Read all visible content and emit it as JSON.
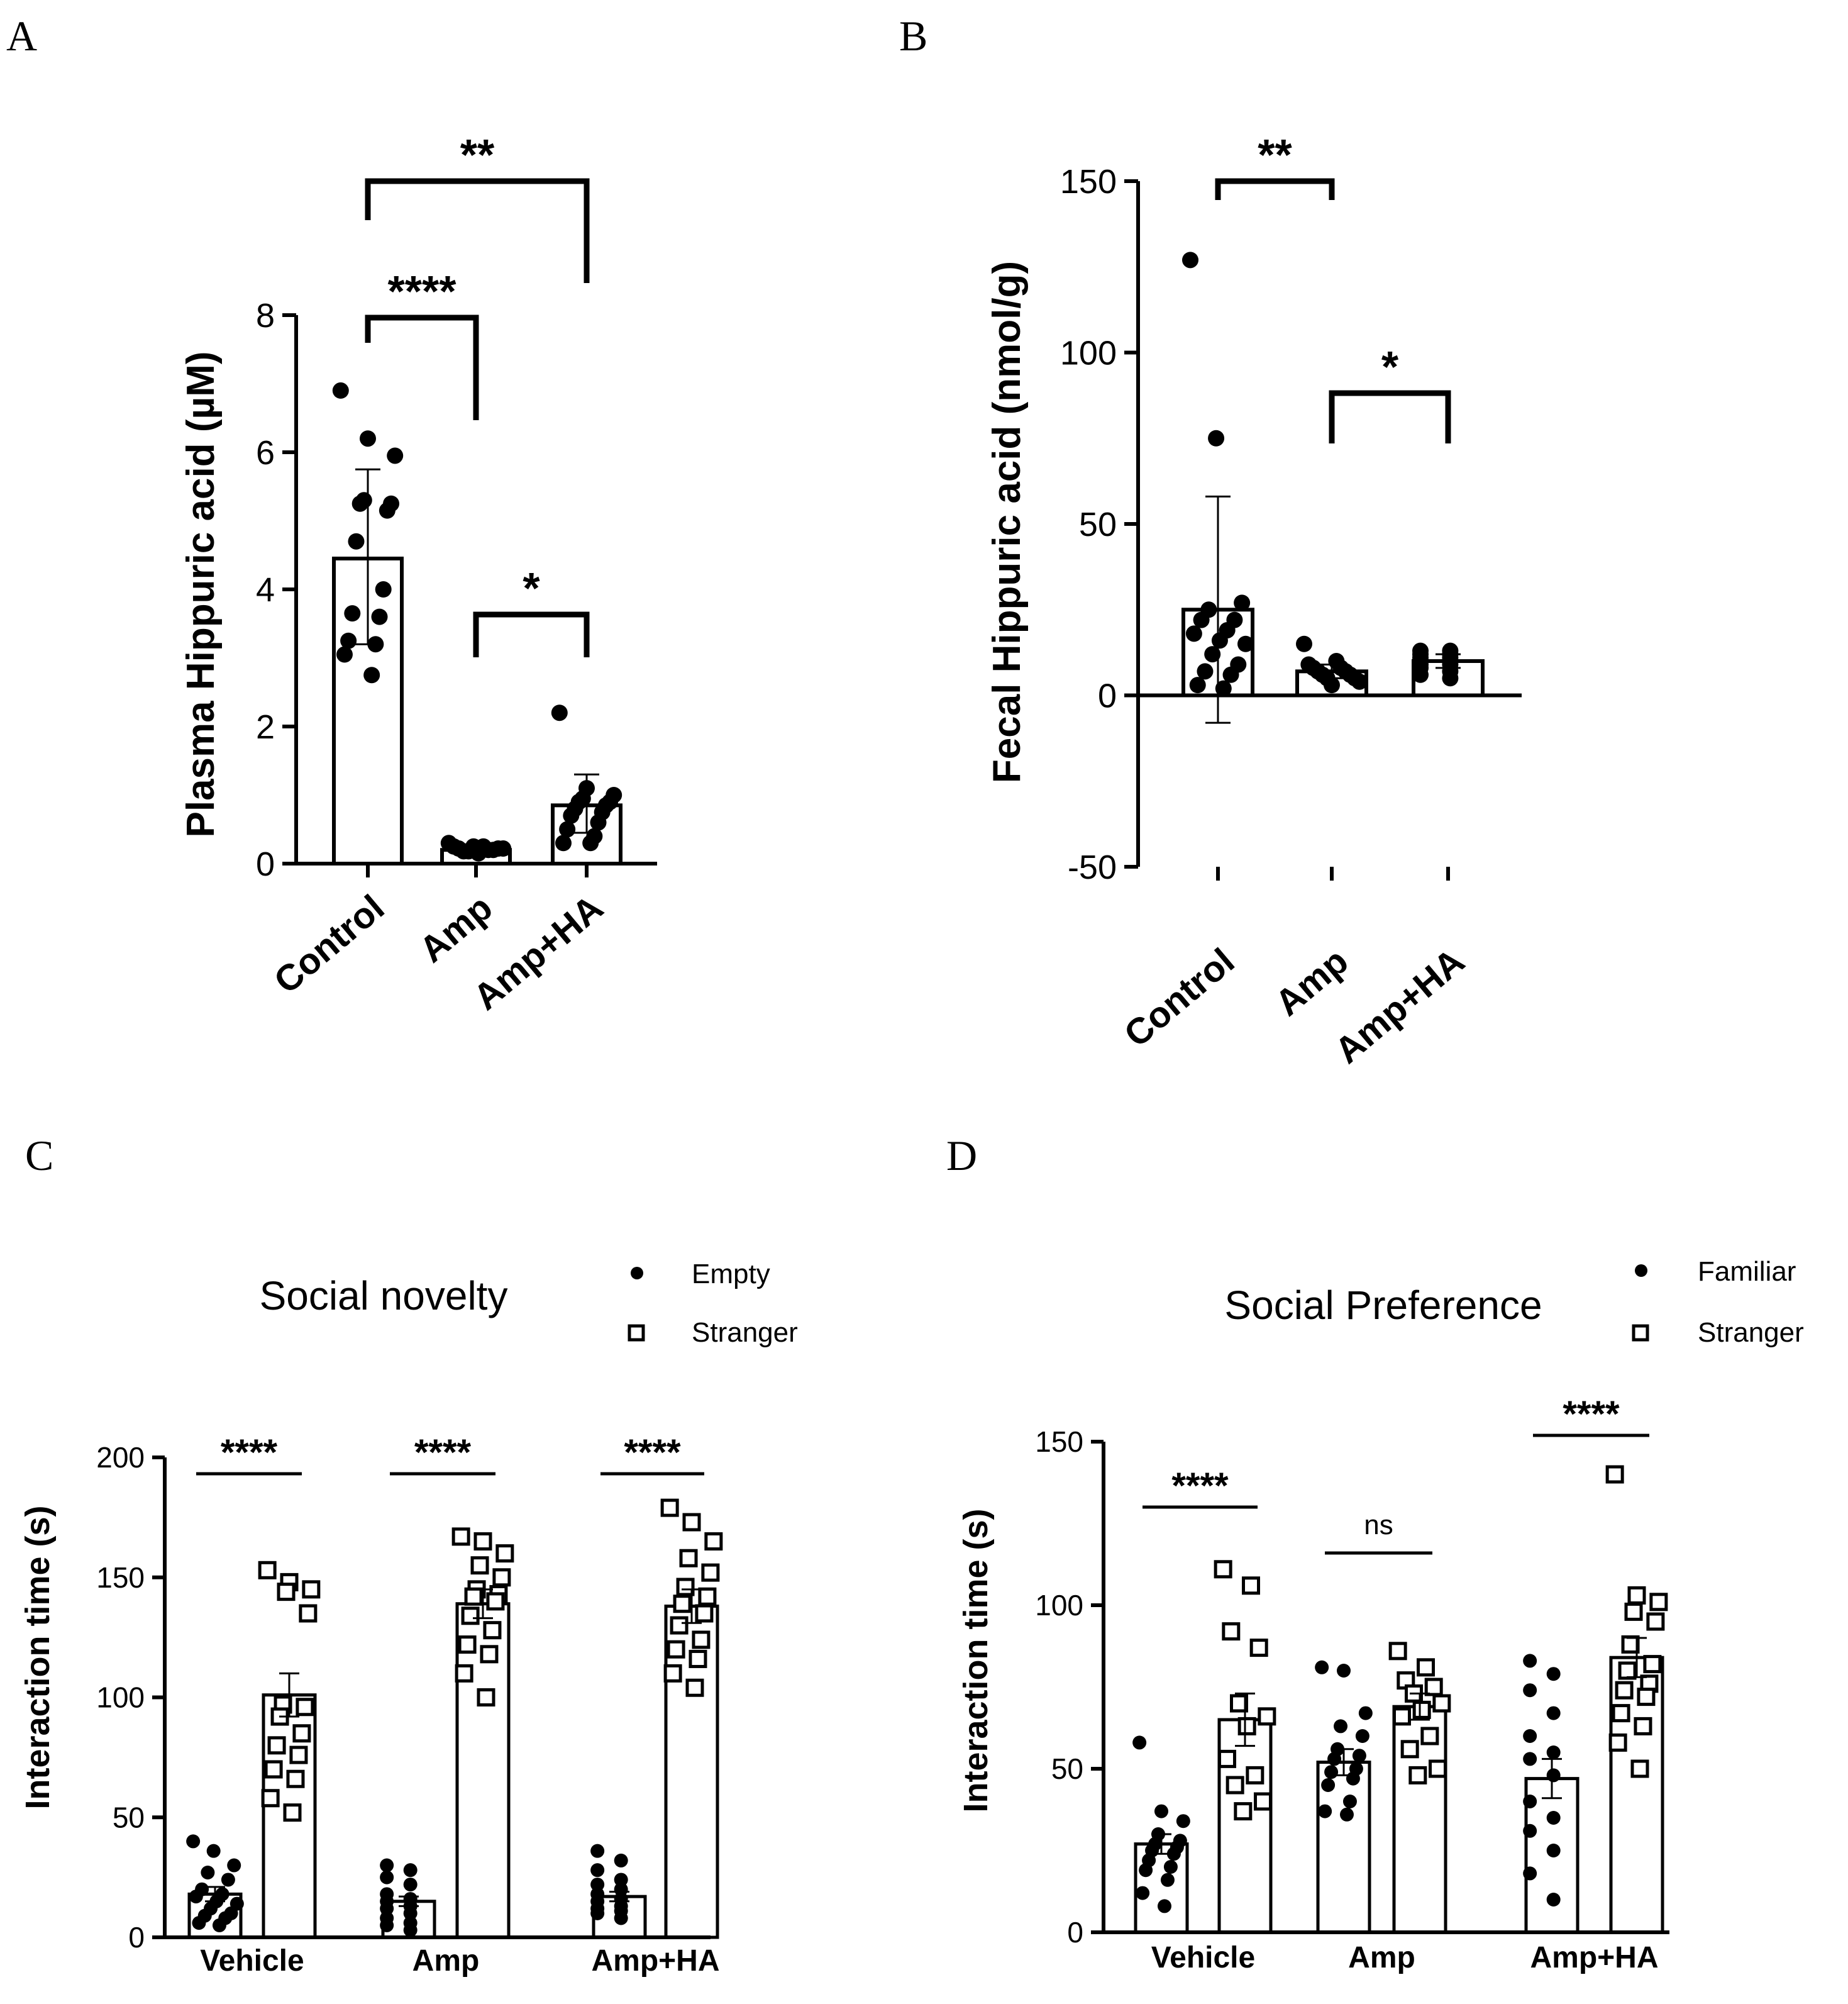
{
  "chart_data": [
    {
      "id": "A",
      "panel_label": "A",
      "type": "bar",
      "title": "",
      "xlabel": "",
      "ylabel": "Plasma Hippuric acid (µM)",
      "ylim": [
        0,
        8
      ],
      "yticks": [
        0,
        2,
        4,
        6,
        8
      ],
      "categories": [
        "Control",
        "Amp",
        "Amp+HA"
      ],
      "bars": [
        {
          "category": "Control",
          "mean": 4.45,
          "err_low": 3.2,
          "err_high": 5.75,
          "points": [
            6.9,
            6.2,
            5.95,
            5.3,
            5.25,
            5.25,
            5.15,
            4.7,
            4.0,
            3.65,
            3.6,
            3.25,
            3.2,
            3.05,
            2.75
          ]
        },
        {
          "category": "Amp",
          "mean": 0.2,
          "err_low": 0.15,
          "err_high": 0.28,
          "points": [
            0.3,
            0.25,
            0.22,
            0.2,
            0.18,
            0.22,
            0.15,
            0.25,
            0.2,
            0.18,
            0.22,
            0.25
          ]
        },
        {
          "category": "Amp+HA",
          "mean": 0.85,
          "err_low": 0.45,
          "err_high": 1.3,
          "points": [
            2.2,
            1.1,
            1.0,
            0.95,
            0.9,
            0.9,
            0.85,
            0.8,
            0.75,
            0.7,
            0.6,
            0.5,
            0.4,
            0.3,
            0.3
          ]
        }
      ],
      "significance": [
        {
          "from": "Control",
          "to": "Amp",
          "label": "****"
        },
        {
          "from": "Control",
          "to": "Amp+HA",
          "label": "**"
        },
        {
          "from": "Amp",
          "to": "Amp+HA",
          "label": "*"
        }
      ]
    },
    {
      "id": "B",
      "panel_label": "B",
      "type": "bar",
      "title": "",
      "xlabel": "",
      "ylabel": "Fecal Hippuric acid (nmol/g)",
      "ylim": [
        -50,
        150
      ],
      "yticks": [
        -50,
        0,
        50,
        100,
        150
      ],
      "categories": [
        "Control",
        "Amp",
        "Amp+HA"
      ],
      "bars": [
        {
          "category": "Control",
          "mean": 25,
          "err_low": -8,
          "err_high": 58,
          "points": [
            127,
            75,
            27,
            25,
            22,
            22,
            19,
            18,
            16,
            15,
            12,
            9,
            7,
            6,
            3,
            2
          ]
        },
        {
          "category": "Amp",
          "mean": 7,
          "err_low": 5,
          "err_high": 9,
          "points": [
            15,
            10,
            9,
            8,
            8,
            7,
            7,
            6,
            6,
            5,
            5,
            4,
            3
          ]
        },
        {
          "category": "Amp+HA",
          "mean": 10,
          "err_low": 8,
          "err_high": 12,
          "points": [
            13,
            13,
            12,
            12,
            11,
            11,
            10,
            10,
            9,
            9,
            8,
            7,
            6,
            5
          ]
        }
      ],
      "significance": [
        {
          "from": "Control",
          "to": "Amp",
          "label": "**"
        },
        {
          "from": "Amp",
          "to": "Amp+HA",
          "label": "*"
        }
      ]
    },
    {
      "id": "C",
      "panel_label": "C",
      "type": "bar",
      "title": "Social novelty",
      "xlabel": "",
      "ylabel": "Interaction time (s)",
      "ylim": [
        0,
        200
      ],
      "yticks": [
        0,
        50,
        100,
        150,
        200
      ],
      "categories": [
        "Vehicle",
        "Amp",
        "Amp+HA"
      ],
      "legend": [
        {
          "label": "Empty",
          "marker": "filled-circle"
        },
        {
          "label": "Stranger",
          "marker": "open-square"
        }
      ],
      "series": [
        {
          "name": "Empty",
          "values": [
            18,
            15,
            17
          ],
          "sem": [
            3,
            2,
            2
          ],
          "points": [
            [
              40,
              36,
              30,
              27,
              24,
              20,
              18,
              17,
              15,
              14,
              12,
              10,
              9,
              8,
              6,
              5
            ],
            [
              30,
              28,
              25,
              22,
              18,
              16,
              15,
              13,
              12,
              10,
              8,
              6,
              5,
              3
            ],
            [
              36,
              32,
              28,
              24,
              22,
              20,
              18,
              16,
              15,
              13,
              12,
              11,
              10,
              8
            ]
          ]
        },
        {
          "name": "Stranger",
          "values": [
            101,
            139,
            138
          ],
          "sem": [
            9,
            6,
            7
          ],
          "points": [
            [
              153,
              148,
              145,
              144,
              135,
              97,
              96,
              92,
              85,
              80,
              76,
              70,
              66,
              58,
              52
            ],
            [
              167,
              165,
              160,
              155,
              150,
              145,
              143,
              142,
              140,
              134,
              128,
              122,
              118,
              110,
              100
            ],
            [
              179,
              173,
              165,
              158,
              152,
              146,
              142,
              139,
              135,
              130,
              124,
              120,
              116,
              110,
              104
            ]
          ]
        }
      ],
      "significance": [
        {
          "group": "Vehicle",
          "label": "****"
        },
        {
          "group": "Amp",
          "label": "****"
        },
        {
          "group": "Amp+HA",
          "label": "****"
        }
      ]
    },
    {
      "id": "D",
      "panel_label": "D",
      "type": "bar",
      "title": "Social Preference",
      "xlabel": "",
      "ylabel": "Interaction time (s)",
      "ylim": [
        0,
        150
      ],
      "yticks": [
        0,
        50,
        100,
        150
      ],
      "categories": [
        "Vehicle",
        "Amp",
        "Amp+HA"
      ],
      "legend": [
        {
          "label": "Familiar",
          "marker": "filled-circle"
        },
        {
          "label": "Stranger",
          "marker": "open-square"
        }
      ],
      "series": [
        {
          "name": "Familiar",
          "values": [
            27,
            52,
            47
          ],
          "sem": [
            3,
            4,
            6
          ],
          "points": [
            [
              58,
              37,
              34,
              30,
              28,
              27,
              26,
              25,
              24,
              22,
              20,
              19,
              16,
              12,
              8
            ],
            [
              81,
              80,
              67,
              63,
              60,
              56,
              54,
              53,
              50,
              49,
              47,
              45,
              40,
              37,
              36
            ],
            [
              83,
              79,
              74,
              67,
              60,
              55,
              53,
              48,
              40,
              35,
              31,
              25,
              18,
              10
            ]
          ]
        },
        {
          "name": "Stranger",
          "values": [
            65,
            69,
            84
          ],
          "sem": [
            8,
            4,
            6
          ],
          "points": [
            [
              111,
              106,
              92,
              87,
              70,
              66,
              63,
              53,
              48,
              45,
              40,
              37
            ],
            [
              86,
              81,
              77,
              75,
              73,
              70,
              68,
              66,
              60,
              56,
              50,
              48
            ],
            [
              140,
              103,
              101,
              98,
              95,
              88,
              82,
              80,
              76,
              74,
              72,
              67,
              63,
              58,
              50
            ]
          ]
        }
      ],
      "significance": [
        {
          "group": "Vehicle",
          "label": "****"
        },
        {
          "group": "Amp",
          "label": "ns"
        },
        {
          "group": "Amp+HA",
          "label": "****"
        }
      ]
    }
  ]
}
